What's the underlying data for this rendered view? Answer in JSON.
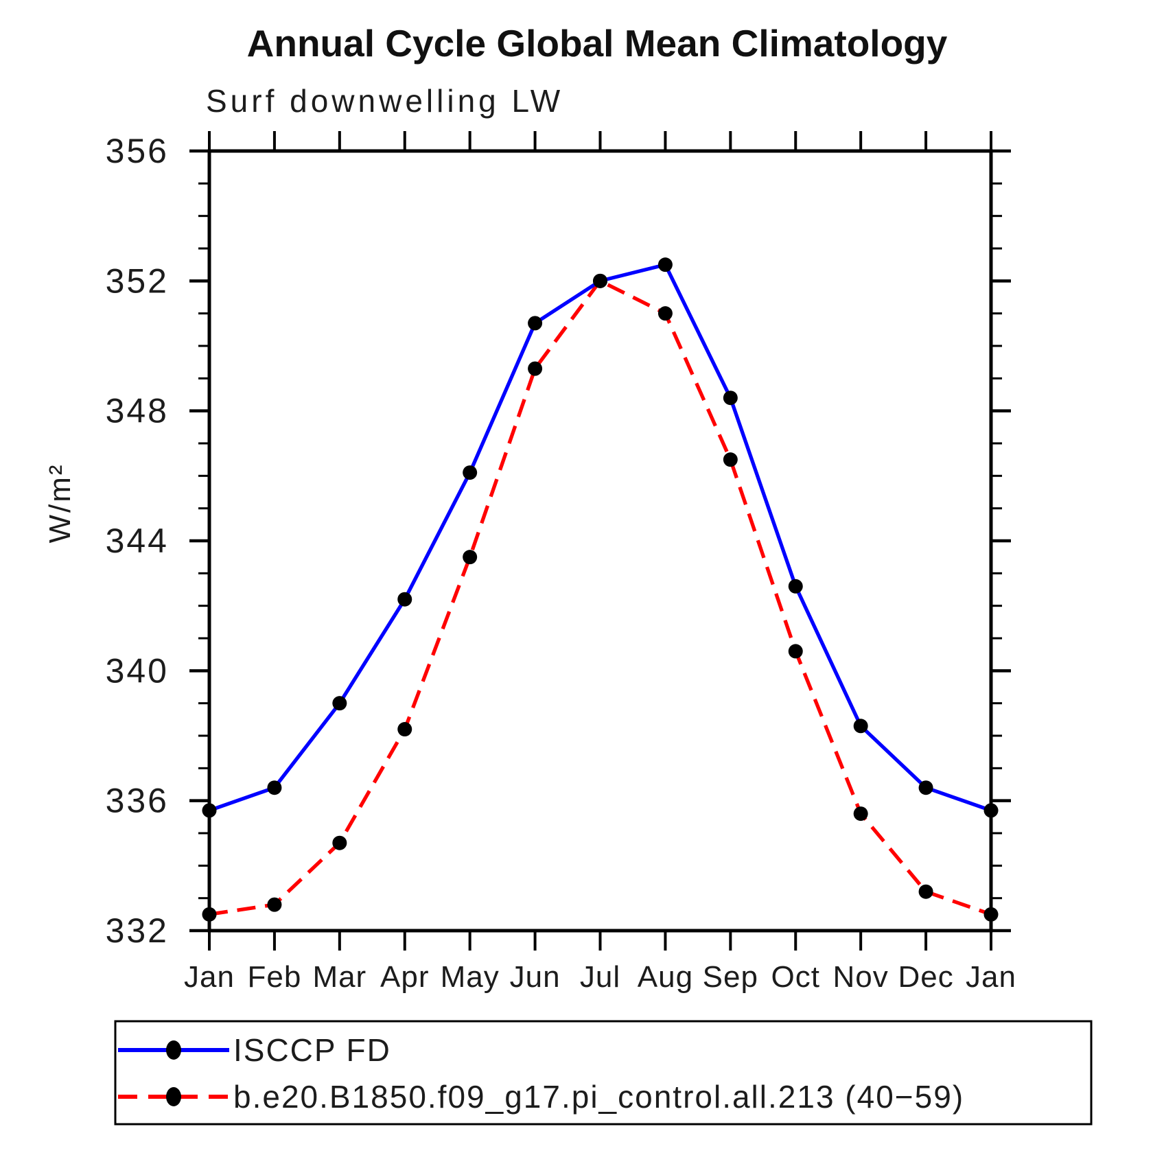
{
  "chart_data": {
    "type": "line",
    "title": "Annual Cycle Global Mean Climatology",
    "subtitle": "Surf downwelling LW",
    "ylabel": "W/m²",
    "xlabel": "",
    "categories": [
      "Jan",
      "Feb",
      "Mar",
      "Apr",
      "May",
      "Jun",
      "Jul",
      "Aug",
      "Sep",
      "Oct",
      "Nov",
      "Dec",
      "Jan"
    ],
    "ylim": [
      332,
      356
    ],
    "yticks": [
      332,
      336,
      340,
      344,
      348,
      352,
      356
    ],
    "y_minor_step": 1,
    "grid": "off",
    "legend_position": "bottom",
    "series": [
      {
        "name": "ISCCP FD",
        "line_color": "#0000ff",
        "line_style": "solid",
        "marker": "circle",
        "marker_color": "#000000",
        "values": [
          335.7,
          336.4,
          339.0,
          342.2,
          346.1,
          350.7,
          352.0,
          352.5,
          348.4,
          342.6,
          338.3,
          336.4,
          335.7
        ]
      },
      {
        "name": "b.e20.B1850.f09_g17.pi_control.all.213 (40−59)",
        "line_color": "#ff0000",
        "line_style": "dashed",
        "marker": "circle",
        "marker_color": "#000000",
        "values": [
          332.5,
          332.8,
          334.7,
          338.2,
          343.5,
          349.3,
          352.0,
          351.0,
          346.5,
          340.6,
          335.6,
          333.2,
          332.5
        ]
      }
    ]
  },
  "colors": {
    "axis": "#000000",
    "text": "#1c1c1c",
    "series1": "#0000ff",
    "series2": "#ff0000",
    "marker": "#000000"
  }
}
